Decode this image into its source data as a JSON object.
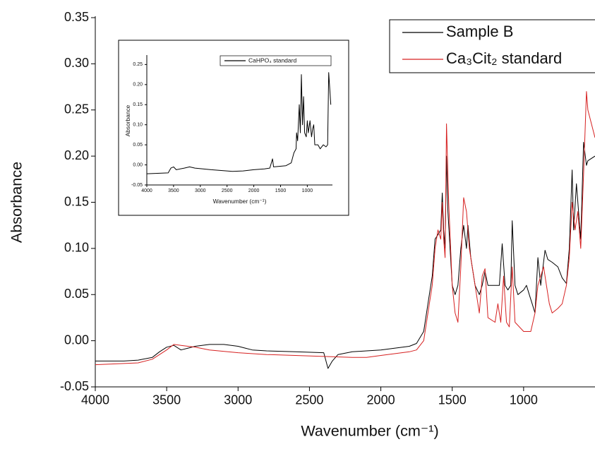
{
  "chart_data": [
    {
      "type": "line",
      "x_label": "Wavenumber (cm⁻¹)",
      "y_label": "Absorbance",
      "xlim": [
        4000,
        500
      ],
      "ylim": [
        -0.05,
        0.35
      ],
      "xticks": [
        4000,
        3500,
        3000,
        2500,
        2000,
        1500,
        1000
      ],
      "yticks": [
        {
          "value": -0.05,
          "label": "-0.05"
        },
        {
          "value": 0,
          "label": "0.00"
        },
        {
          "value": 0.05,
          "label": "0.05"
        },
        {
          "value": 0.1,
          "label": "0.10"
        },
        {
          "value": 0.15,
          "label": "0.15"
        },
        {
          "value": 0.2,
          "label": "0.20"
        },
        {
          "value": 0.25,
          "label": "0.25"
        },
        {
          "value": 0.3,
          "label": "0.30"
        },
        {
          "value": 0.35,
          "label": "0.35"
        }
      ],
      "legend": "upper right",
      "series": [
        {
          "name": "Sample B",
          "color": "#000000",
          "x": [
            4000,
            3800,
            3700,
            3600,
            3550,
            3500,
            3450,
            3400,
            3350,
            3300,
            3200,
            3100,
            3000,
            2950,
            2900,
            2800,
            2600,
            2400,
            2370,
            2340,
            2300,
            2200,
            2100,
            2000,
            1900,
            1800,
            1750,
            1700,
            1680,
            1660,
            1640,
            1620,
            1600,
            1580,
            1570,
            1560,
            1550,
            1540,
            1530,
            1500,
            1480,
            1460,
            1440,
            1420,
            1400,
            1390,
            1370,
            1340,
            1310,
            1290,
            1270,
            1250,
            1200,
            1170,
            1150,
            1130,
            1110,
            1090,
            1080,
            1060,
            1040,
            1000,
            980,
            960,
            940,
            920,
            900,
            880,
            850,
            830,
            800,
            760,
            730,
            700,
            680,
            660,
            650,
            630,
            610,
            600,
            580,
            560,
            550,
            500
          ],
          "values": [
            -0.022,
            -0.022,
            -0.021,
            -0.018,
            -0.012,
            -0.007,
            -0.005,
            -0.01,
            -0.008,
            -0.006,
            -0.004,
            -0.004,
            -0.006,
            -0.008,
            -0.01,
            -0.011,
            -0.012,
            -0.013,
            -0.03,
            -0.022,
            -0.015,
            -0.012,
            -0.011,
            -0.01,
            -0.008,
            -0.006,
            -0.003,
            0.01,
            0.03,
            0.05,
            0.07,
            0.11,
            0.115,
            0.12,
            0.16,
            0.12,
            0.1,
            0.2,
            0.14,
            0.06,
            0.05,
            0.06,
            0.1,
            0.125,
            0.1,
            0.125,
            0.09,
            0.06,
            0.05,
            0.06,
            0.075,
            0.06,
            0.06,
            0.06,
            0.105,
            0.06,
            0.055,
            0.06,
            0.13,
            0.06,
            0.05,
            0.055,
            0.06,
            0.05,
            0.04,
            0.03,
            0.09,
            0.06,
            0.098,
            0.088,
            0.085,
            0.08,
            0.068,
            0.062,
            0.1,
            0.185,
            0.12,
            0.17,
            0.13,
            0.11,
            0.215,
            0.19,
            0.195,
            0.2
          ]
        },
        {
          "name": "Ca₃Cit₂ standard",
          "color": "#d62020",
          "x": [
            4000,
            3700,
            3600,
            3500,
            3450,
            3400,
            3300,
            3200,
            3000,
            2800,
            2600,
            2400,
            2200,
            2100,
            2000,
            1900,
            1800,
            1750,
            1700,
            1680,
            1660,
            1640,
            1620,
            1600,
            1580,
            1570,
            1560,
            1550,
            1540,
            1525,
            1500,
            1480,
            1460,
            1440,
            1420,
            1400,
            1380,
            1340,
            1310,
            1290,
            1270,
            1250,
            1200,
            1180,
            1160,
            1140,
            1120,
            1100,
            1080,
            1060,
            1000,
            950,
            920,
            900,
            880,
            860,
            840,
            820,
            800,
            760,
            730,
            700,
            680,
            660,
            640,
            620,
            600,
            580,
            560,
            550,
            500
          ],
          "values": [
            -0.026,
            -0.024,
            -0.02,
            -0.01,
            -0.004,
            -0.005,
            -0.007,
            -0.01,
            -0.013,
            -0.015,
            -0.016,
            -0.017,
            -0.018,
            -0.018,
            -0.016,
            -0.014,
            -0.012,
            -0.01,
            0,
            0.02,
            0.04,
            0.06,
            0.1,
            0.12,
            0.11,
            0.15,
            0.11,
            0.09,
            0.235,
            0.15,
            0.06,
            0.03,
            0.02,
            0.08,
            0.155,
            0.14,
            0.1,
            0.06,
            0.03,
            0.07,
            0.078,
            0.025,
            0.02,
            0.04,
            0.02,
            0.07,
            0.02,
            0.015,
            0.08,
            0.02,
            0.01,
            0.01,
            0.03,
            0.06,
            0.07,
            0.08,
            0.06,
            0.04,
            0.03,
            0.035,
            0.04,
            0.06,
            0.09,
            0.15,
            0.12,
            0.14,
            0.1,
            0.18,
            0.27,
            0.25,
            0.22
          ]
        }
      ]
    },
    {
      "type": "line",
      "x_label": "Wavenumber (cm⁻¹)",
      "y_label": "Absorbance",
      "xlim": [
        4000,
        530
      ],
      "ylim": [
        -0.05,
        0.27
      ],
      "xticks": [
        4000,
        3500,
        3000,
        2500,
        2000,
        1500,
        1000
      ],
      "yticks": [
        {
          "value": -0.05,
          "label": "-0.05"
        },
        {
          "value": 0,
          "label": "0.00"
        },
        {
          "value": 0.05,
          "label": "0.05"
        },
        {
          "value": 0.1,
          "label": "0.10"
        },
        {
          "value": 0.15,
          "label": "0.15"
        },
        {
          "value": 0.2,
          "label": "0.20"
        },
        {
          "value": 0.25,
          "label": "0.25"
        }
      ],
      "legend": "upper right",
      "series": [
        {
          "name": "CaHPO₄ standard",
          "color": "#000000",
          "x": [
            4000,
            3600,
            3550,
            3500,
            3450,
            3300,
            3200,
            3100,
            2800,
            2400,
            2200,
            2000,
            1800,
            1700,
            1650,
            1630,
            1400,
            1300,
            1250,
            1210,
            1200,
            1180,
            1150,
            1130,
            1110,
            1090,
            1070,
            1050,
            1020,
            1000,
            980,
            950,
            920,
            900,
            880,
            860,
            800,
            760,
            700,
            650,
            620,
            600,
            560
          ],
          "values": [
            -0.022,
            -0.02,
            -0.008,
            -0.005,
            -0.012,
            -0.008,
            -0.005,
            -0.008,
            -0.012,
            -0.016,
            -0.015,
            -0.012,
            -0.01,
            -0.008,
            0.015,
            -0.005,
            -0.002,
            0.005,
            0.03,
            0.04,
            0.08,
            0.06,
            0.15,
            0.08,
            0.225,
            0.1,
            0.17,
            0.08,
            0.07,
            0.11,
            0.08,
            0.11,
            0.07,
            0.09,
            0.1,
            0.05,
            0.05,
            0.04,
            0.05,
            0.045,
            0.05,
            0.23,
            0.15
          ]
        }
      ]
    }
  ]
}
